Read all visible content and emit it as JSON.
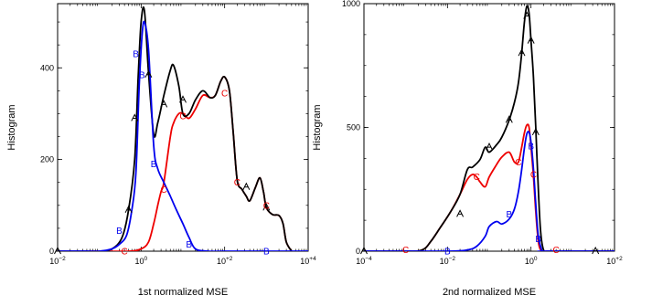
{
  "chart_data": [
    {
      "type": "line",
      "xscale": "log",
      "xlim": [
        0.01,
        10000
      ],
      "ylim": [
        0,
        540
      ],
      "xlabel": "1st normalized MSE",
      "ylabel": "Histogram",
      "xticks": [
        0.01,
        1,
        100,
        10000
      ],
      "xtick_labels": [
        [
          "10",
          "−2"
        ],
        [
          "10",
          "0"
        ],
        [
          "10",
          "+2"
        ],
        [
          "10",
          "+4"
        ]
      ],
      "yticks": [
        0,
        200,
        400
      ],
      "ytick_labels": [
        "0",
        "200",
        "400"
      ],
      "grid": false,
      "series": [
        {
          "marker": "A",
          "color": "#000000",
          "x": [
            0.01,
            0.03,
            0.1,
            0.2,
            0.35,
            0.5,
            0.7,
            0.85,
            1.0,
            1.2,
            1.5,
            2.0,
            2.5,
            3.5,
            5,
            6,
            8,
            10,
            14,
            20,
            30,
            45,
            60,
            80,
            100,
            130,
            160,
            200,
            260,
            330,
            400,
            550,
            700,
            850,
            1000,
            1400,
            2000,
            2500,
            3000,
            4000
          ],
          "y": [
            0,
            0,
            0,
            5,
            30,
            90,
            200,
            380,
            500,
            525,
            390,
            255,
            280,
            340,
            395,
            405,
            360,
            300,
            300,
            330,
            350,
            335,
            340,
            370,
            380,
            350,
            260,
            155,
            135,
            120,
            110,
            140,
            160,
            130,
            95,
            80,
            78,
            60,
            20,
            0
          ],
          "markers_x": [
            0.01,
            0.5,
            0.7,
            1.5,
            3.5,
            10,
            330,
            1000
          ],
          "markers_y": [
            0,
            90,
            290,
            385,
            320,
            330,
            140,
            95
          ]
        },
        {
          "marker": "B",
          "color": "#0000ee",
          "x": [
            0.01,
            0.05,
            0.1,
            0.2,
            0.3,
            0.45,
            0.6,
            0.75,
            0.9,
            1.05,
            1.2,
            1.5,
            2.0,
            2.5,
            3.5,
            5,
            7,
            10,
            14,
            20,
            40,
            100,
            1000,
            10000
          ],
          "y": [
            0,
            0,
            0,
            5,
            15,
            35,
            90,
            170,
            360,
            470,
            500,
            440,
            230,
            180,
            150,
            120,
            90,
            60,
            30,
            5,
            0,
            0,
            0,
            0
          ],
          "markers_x": [
            0.3,
            0.75,
            1.05,
            2.0,
            14,
            1000
          ],
          "markers_y": [
            45,
            430,
            385,
            190,
            15,
            0
          ]
        },
        {
          "marker": "C",
          "color": "#ee0000",
          "x": [
            0.01,
            0.1,
            0.5,
            1,
            1.5,
            2,
            2.5,
            3,
            3.5,
            5,
            6,
            8,
            10,
            14,
            20,
            30,
            45,
            60,
            80,
            100,
            130,
            160,
            200,
            260,
            330,
            400,
            550,
            700,
            850,
            1000,
            1400,
            2000,
            2500,
            3000,
            4000
          ],
          "y": [
            0,
            0,
            0,
            5,
            20,
            60,
            100,
            130,
            150,
            250,
            280,
            300,
            300,
            290,
            310,
            340,
            335,
            340,
            370,
            380,
            350,
            260,
            155,
            135,
            120,
            110,
            140,
            160,
            130,
            95,
            80,
            78,
            60,
            20,
            0
          ],
          "markers_x": [
            0.4,
            3.5,
            10,
            100,
            200,
            1000
          ],
          "markers_y": [
            0,
            135,
            295,
            345,
            150,
            100
          ]
        }
      ]
    },
    {
      "type": "line",
      "xscale": "log",
      "xlim": [
        0.0001,
        100
      ],
      "ylim": [
        0,
        1000
      ],
      "xlabel": "2nd normalized MSE",
      "ylabel": "Histogram",
      "xticks": [
        0.0001,
        0.01,
        1,
        100
      ],
      "xtick_labels": [
        [
          "10",
          "−4"
        ],
        [
          "10",
          "−2"
        ],
        [
          "10",
          "0"
        ],
        [
          "10",
          "+2"
        ]
      ],
      "yticks": [
        0,
        500,
        1000
      ],
      "ytick_labels": [
        "0",
        "500",
        "1000"
      ],
      "grid": false,
      "series": [
        {
          "marker": "A",
          "color": "#000000",
          "x": [
            0.0001,
            0.001,
            0.0025,
            0.004,
            0.007,
            0.012,
            0.02,
            0.03,
            0.04,
            0.06,
            0.08,
            0.1,
            0.15,
            0.2,
            0.3,
            0.4,
            0.5,
            0.6,
            0.7,
            0.8,
            0.9,
            1.0,
            1.15,
            1.3,
            1.5,
            1.7,
            2.0,
            2.5,
            5,
            100
          ],
          "y": [
            0,
            0,
            5,
            40,
            100,
            160,
            230,
            330,
            340,
            370,
            420,
            400,
            430,
            460,
            530,
            600,
            680,
            800,
            930,
            990,
            960,
            850,
            700,
            500,
            250,
            80,
            5,
            0,
            0,
            0
          ],
          "markers_x": [
            0.0001,
            0.02,
            0.1,
            0.3,
            0.6,
            0.8,
            1.0,
            1.3,
            35
          ],
          "markers_y": [
            0,
            150,
            420,
            530,
            800,
            950,
            850,
            480,
            0
          ]
        },
        {
          "marker": "B",
          "color": "#0000ee",
          "x": [
            0.0001,
            0.01,
            0.03,
            0.05,
            0.08,
            0.1,
            0.15,
            0.2,
            0.3,
            0.4,
            0.5,
            0.6,
            0.7,
            0.8,
            0.9,
            1.0,
            1.15,
            1.3,
            1.5,
            1.8,
            2.0,
            100
          ],
          "y": [
            0,
            0,
            5,
            20,
            60,
            100,
            120,
            110,
            130,
            170,
            240,
            330,
            420,
            475,
            480,
            440,
            330,
            190,
            60,
            5,
            0,
            0
          ],
          "markers_x": [
            0.01,
            0.3,
            1.0,
            1.5
          ],
          "markers_y": [
            0,
            150,
            425,
            50
          ]
        },
        {
          "marker": "C",
          "color": "#ee0000",
          "x": [
            0.0001,
            0.001,
            0.0025,
            0.004,
            0.007,
            0.012,
            0.02,
            0.03,
            0.04,
            0.05,
            0.06,
            0.08,
            0.1,
            0.15,
            0.2,
            0.3,
            0.4,
            0.5,
            0.6,
            0.7,
            0.8,
            0.9,
            1.0,
            1.15,
            1.3,
            1.5,
            1.7,
            2.0,
            2.5,
            5,
            100
          ],
          "y": [
            0,
            0,
            5,
            40,
            100,
            160,
            230,
            290,
            310,
            300,
            280,
            260,
            300,
            350,
            380,
            400,
            360,
            360,
            420,
            480,
            510,
            500,
            420,
            300,
            160,
            40,
            5,
            0,
            0,
            0,
            0
          ],
          "markers_x": [
            0.001,
            0.05,
            0.5,
            1.15,
            4
          ],
          "markers_y": [
            5,
            300,
            360,
            310,
            5
          ]
        }
      ]
    }
  ]
}
